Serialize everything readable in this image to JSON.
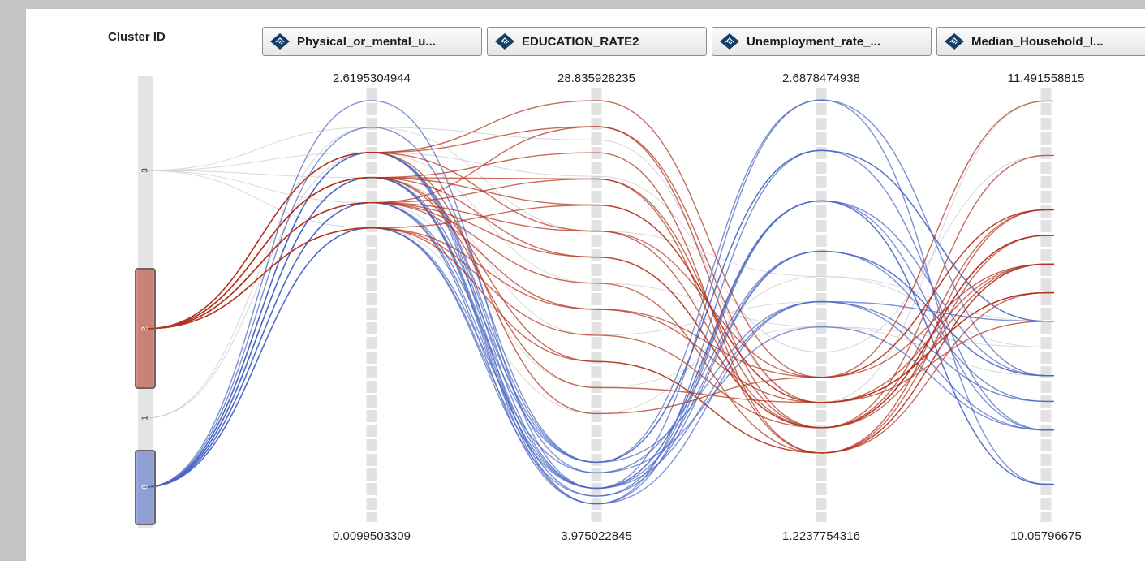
{
  "header": {
    "cluster_title": "Cluster ID"
  },
  "colors": {
    "cluster_0": "#4a66c4",
    "cluster_1": "#c9c9d9",
    "cluster_2": "#b2321c",
    "cluster_3": "#cfcfcf",
    "icon": "#123e6a"
  },
  "axes": [
    {
      "label": "Physical_or_mental_u...",
      "max": "2.6195304944",
      "min": "0.0099503309",
      "icon": "measure-icon"
    },
    {
      "label": "EDUCATION_RATE2",
      "max": "28.835928235",
      "min": "3.975022845",
      "icon": "measure-icon"
    },
    {
      "label": "Unemployment_rate_...",
      "max": "2.6878474938",
      "min": "1.2237754316",
      "icon": "measure-icon"
    },
    {
      "label": "Median_Household_I...",
      "max": "11.491558815",
      "min": "10.05796675",
      "icon": "measure-icon"
    }
  ],
  "chart_data": {
    "type": "parallel-coordinates",
    "title": "",
    "cluster_axis": {
      "label": "Cluster ID",
      "categories": [
        "3",
        "2",
        "1",
        "0"
      ],
      "selected": [
        "2",
        "0"
      ]
    },
    "dimensions": [
      {
        "name": "Physical_or_mental_u...",
        "min": 0.0099503309,
        "max": 2.6195304944
      },
      {
        "name": "EDUCATION_RATE2",
        "min": 3.975022845,
        "max": 28.835928235
      },
      {
        "name": "Unemployment_rate_...",
        "min": 1.2237754316,
        "max": 2.6878474938
      },
      {
        "name": "Median_Household_I...",
        "min": 10.05796675,
        "max": 11.491558815
      }
    ],
    "series": [
      {
        "name": "0",
        "values": [
          [
            2.62,
            5.33,
            2.69,
            10.15
          ],
          [
            2.45,
            6.91,
            2.51,
            10.34
          ],
          [
            2.29,
            5.33,
            2.33,
            10.34
          ],
          [
            2.29,
            4.39,
            2.33,
            10.15
          ],
          [
            2.29,
            6.27,
            2.15,
            10.53
          ],
          [
            2.13,
            4.86,
            2.15,
            10.53
          ],
          [
            2.13,
            5.33,
            1.97,
            10.44
          ],
          [
            2.13,
            6.91,
            2.51,
            10.72
          ],
          [
            1.97,
            5.33,
            2.33,
            10.15
          ],
          [
            1.97,
            4.39,
            1.97,
            10.72
          ],
          [
            1.81,
            6.27,
            1.88,
            10.34
          ],
          [
            1.81,
            5.33,
            2.15,
            10.44
          ],
          [
            1.97,
            6.91,
            2.69,
            10.53
          ],
          [
            2.13,
            4.39,
            2.51,
            10.72
          ],
          [
            1.81,
            4.86,
            2.33,
            10.53
          ],
          [
            2.29,
            6.91,
            1.97,
            10.34
          ]
        ]
      },
      {
        "name": "1",
        "values": [
          [
            2.45,
            26.46,
            1.61,
            11.49
          ],
          [
            2.29,
            24.25,
            1.79,
            11.3
          ]
        ]
      },
      {
        "name": "2",
        "values": [
          [
            2.29,
            28.84,
            1.7,
            11.49
          ],
          [
            2.29,
            27.26,
            1.52,
            11.3
          ],
          [
            2.13,
            25.68,
            1.43,
            11.11
          ],
          [
            2.13,
            24.09,
            1.52,
            11.11
          ],
          [
            2.13,
            22.51,
            1.61,
            10.92
          ],
          [
            1.97,
            20.93,
            1.7,
            10.92
          ],
          [
            1.97,
            19.35,
            1.52,
            11.02
          ],
          [
            1.97,
            17.77,
            1.43,
            10.82
          ],
          [
            1.81,
            16.19,
            1.61,
            10.82
          ],
          [
            1.81,
            14.61,
            1.52,
            11.02
          ],
          [
            1.81,
            13.02,
            1.43,
            10.92
          ],
          [
            2.13,
            11.44,
            1.61,
            10.72
          ],
          [
            2.29,
            9.86,
            1.7,
            11.11
          ],
          [
            1.97,
            24.09,
            1.43,
            10.92
          ],
          [
            2.13,
            19.35,
            1.52,
            11.02
          ],
          [
            1.81,
            22.51,
            1.61,
            10.82
          ],
          [
            1.97,
            16.19,
            1.7,
            11.11
          ],
          [
            2.29,
            20.93,
            1.52,
            10.92
          ],
          [
            2.13,
            13.02,
            1.43,
            11.02
          ],
          [
            1.97,
            27.26,
            1.61,
            10.82
          ]
        ]
      },
      {
        "name": "3",
        "values": [
          [
            2.45,
            20.93,
            2.06,
            10.63
          ],
          [
            2.29,
            17.77,
            1.88,
            10.63
          ],
          [
            2.13,
            14.61,
            1.97,
            10.44
          ],
          [
            1.97,
            11.44,
            1.88,
            10.53
          ],
          [
            1.81,
            9.86,
            2.06,
            10.72
          ]
        ]
      }
    ]
  }
}
